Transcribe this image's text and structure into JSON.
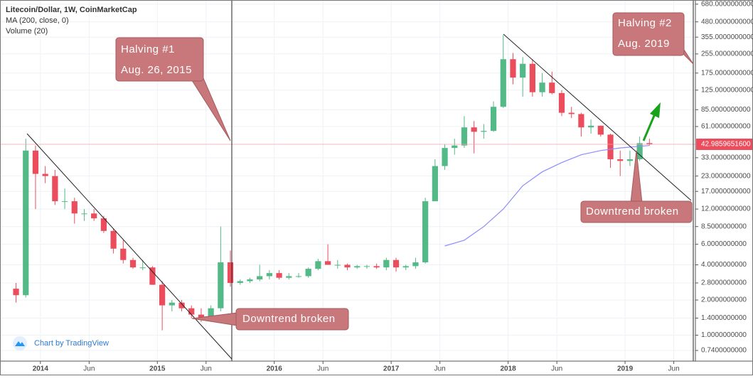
{
  "chart_data": {
    "type": "candlestick",
    "title": "Litecoin/Dollar, 1W, CoinMarketCap",
    "indicators": [
      "MA (200, close, 0)",
      "Volume (20)"
    ],
    "watermark": "Chart by TradingView",
    "log_scale": true,
    "grid": true,
    "up_color": "#53b987",
    "down_color": "#eb4d5c",
    "x": [
      "2013-10",
      "2013-11",
      "2013-12",
      "2014-01",
      "2014-02",
      "2014-03",
      "2014-04",
      "2014-05",
      "2014-06",
      "2014-07",
      "2014-08",
      "2014-09",
      "2014-10",
      "2014-11",
      "2014-12",
      "2015-01",
      "2015-02",
      "2015-03",
      "2015-04",
      "2015-05",
      "2015-06",
      "2015-07",
      "2015-08",
      "2015-09",
      "2015-10",
      "2015-11",
      "2015-12",
      "2016-01",
      "2016-02",
      "2016-03",
      "2016-04",
      "2016-05",
      "2016-06",
      "2016-07",
      "2016-08",
      "2016-09",
      "2016-10",
      "2016-11",
      "2016-12",
      "2017-01",
      "2017-02",
      "2017-03",
      "2017-04",
      "2017-05",
      "2017-06",
      "2017-07",
      "2017-08",
      "2017-09",
      "2017-10",
      "2017-11",
      "2017-12",
      "2018-01",
      "2018-02",
      "2018-03",
      "2018-04",
      "2018-05",
      "2018-06",
      "2018-07",
      "2018-08",
      "2018-09",
      "2018-10",
      "2018-11",
      "2018-12",
      "2019-01",
      "2019-02",
      "2019-03"
    ],
    "open": [
      2.5,
      2.2,
      38,
      24,
      23,
      14,
      14,
      11,
      11,
      10,
      7.8,
      5.5,
      4.4,
      3.8,
      3.8,
      2.7,
      1.8,
      1.9,
      1.7,
      1.5,
      1.35,
      1.7,
      4.2,
      2.8,
      2.9,
      3.0,
      3.2,
      3.4,
      3.1,
      3.2,
      3.2,
      3.7,
      4.3,
      4.0,
      4.0,
      3.8,
      3.9,
      3.9,
      3.8,
      4.4,
      3.8,
      3.9,
      4.2,
      14,
      28,
      40,
      42,
      60,
      55,
      56,
      90,
      230,
      160,
      210,
      120,
      145,
      118,
      80,
      78,
      60,
      62,
      52,
      32,
      31,
      32,
      44
    ],
    "high": [
      2.8,
      48,
      42,
      28,
      26,
      18,
      15,
      12,
      12,
      10.5,
      8.2,
      6.5,
      4.6,
      4.4,
      3.9,
      2.9,
      2.0,
      2.0,
      1.8,
      1.7,
      1.8,
      8.5,
      5.3,
      3.0,
      3.1,
      4.0,
      3.6,
      3.6,
      3.4,
      3.4,
      3.8,
      4.5,
      6.0,
      4.4,
      4.1,
      4.0,
      4.0,
      4.1,
      4.6,
      4.6,
      4.0,
      4.6,
      15,
      32,
      43,
      48,
      75,
      68,
      64,
      100,
      370,
      260,
      240,
      230,
      175,
      180,
      125,
      90,
      80,
      70,
      62,
      53,
      38,
      38,
      50,
      48
    ],
    "low": [
      1.9,
      2.1,
      12,
      20,
      13,
      12,
      9,
      9.5,
      9.5,
      7.5,
      5,
      4.1,
      3.7,
      3.6,
      2.7,
      1.1,
      1.6,
      1.6,
      1.4,
      1.3,
      1.3,
      1.6,
      2.6,
      2.7,
      2.8,
      2.9,
      3.0,
      3.0,
      3.0,
      3.1,
      3.1,
      3.6,
      4.1,
      3.7,
      3.6,
      3.7,
      3.7,
      3.7,
      3.6,
      3.5,
      3.6,
      3.7,
      4.1,
      14,
      26,
      35,
      40,
      36,
      48,
      55,
      88,
      140,
      110,
      110,
      110,
      115,
      75,
      72,
      50,
      53,
      50,
      27,
      23,
      28,
      31,
      42
    ],
    "close": [
      2.2,
      38,
      24,
      23,
      14,
      14,
      11,
      11,
      10,
      7.8,
      5.5,
      4.4,
      3.8,
      3.8,
      2.7,
      1.8,
      1.9,
      1.7,
      1.5,
      1.35,
      1.7,
      4.2,
      2.8,
      2.9,
      3.0,
      3.2,
      3.4,
      3.1,
      3.2,
      3.2,
      3.7,
      4.3,
      4.0,
      4.0,
      3.8,
      3.9,
      3.9,
      3.8,
      4.4,
      3.8,
      3.9,
      4.2,
      14,
      28,
      40,
      42,
      60,
      55,
      56,
      90,
      230,
      160,
      210,
      120,
      145,
      118,
      80,
      78,
      60,
      62,
      52,
      32,
      31,
      32,
      44,
      43
    ],
    "ma": {
      "name": "MA (200, close, 0)",
      "color": "#8c8cff",
      "x": [
        "2017-06",
        "2017-08",
        "2017-10",
        "2017-12",
        "2018-02",
        "2018-04",
        "2018-06",
        "2018-08",
        "2018-10",
        "2018-12",
        "2019-03"
      ],
      "values": [
        5.8,
        6.5,
        8.5,
        12,
        19,
        25,
        30,
        35,
        38,
        40,
        42
      ]
    },
    "last_price": {
      "value": 42.98596516,
      "label": "42.9859651600"
    },
    "xlim": [
      "2013-09",
      "2019-08"
    ],
    "xticks": [
      {
        "value": "2014-01",
        "label": "2014"
      },
      {
        "value": "2014-06",
        "label": "Jun"
      },
      {
        "value": "2015-01",
        "label": "2015"
      },
      {
        "value": "2015-06",
        "label": "Jun"
      },
      {
        "value": "2016-01",
        "label": "2016"
      },
      {
        "value": "2016-06",
        "label": "Jun"
      },
      {
        "value": "2017-01",
        "label": "2017"
      },
      {
        "value": "2017-06",
        "label": "Jun"
      },
      {
        "value": "2018-01",
        "label": "2018"
      },
      {
        "value": "2018-06",
        "label": "Jun"
      },
      {
        "value": "2019-01",
        "label": "2019"
      },
      {
        "value": "2019-06",
        "label": "Jun"
      }
    ],
    "ylim": [
      0.6,
      738
    ],
    "yticks": [
      {
        "value": 680,
        "label": "680.0000000000"
      },
      {
        "value": 480,
        "label": "480.0000000000"
      },
      {
        "value": 355,
        "label": "355.0000000000"
      },
      {
        "value": 255,
        "label": "255.0000000000"
      },
      {
        "value": 175,
        "label": "175.0000000000"
      },
      {
        "value": 125,
        "label": "125.0000000000"
      },
      {
        "value": 85,
        "label": "85.0000000000"
      },
      {
        "value": 61,
        "label": "61.0000000000"
      },
      {
        "value": 33,
        "label": "33.0000000000"
      },
      {
        "value": 23,
        "label": "23.0000000000"
      },
      {
        "value": 17,
        "label": "17.0000000000"
      },
      {
        "value": 12,
        "label": "12.0000000000"
      },
      {
        "value": 8.5,
        "label": "8.5000000000"
      },
      {
        "value": 6,
        "label": "6.0000000000"
      },
      {
        "value": 4,
        "label": "4.0000000000"
      },
      {
        "value": 2.8,
        "label": "2.8000000000"
      },
      {
        "value": 2,
        "label": "2.0000000000"
      },
      {
        "value": 1.4,
        "label": "1.4000000000"
      },
      {
        "value": 1,
        "label": "1.0000000000"
      },
      {
        "value": 0.74,
        "label": "0.7400000000"
      }
    ],
    "annotations": {
      "halving1": [
        "Halving #1",
        "Aug. 26, 2015"
      ],
      "halving2": [
        "Halving #2",
        "Aug. 2019"
      ],
      "breakout1": "Downtrend broken",
      "breakout2": "Downtrend broken"
    }
  }
}
